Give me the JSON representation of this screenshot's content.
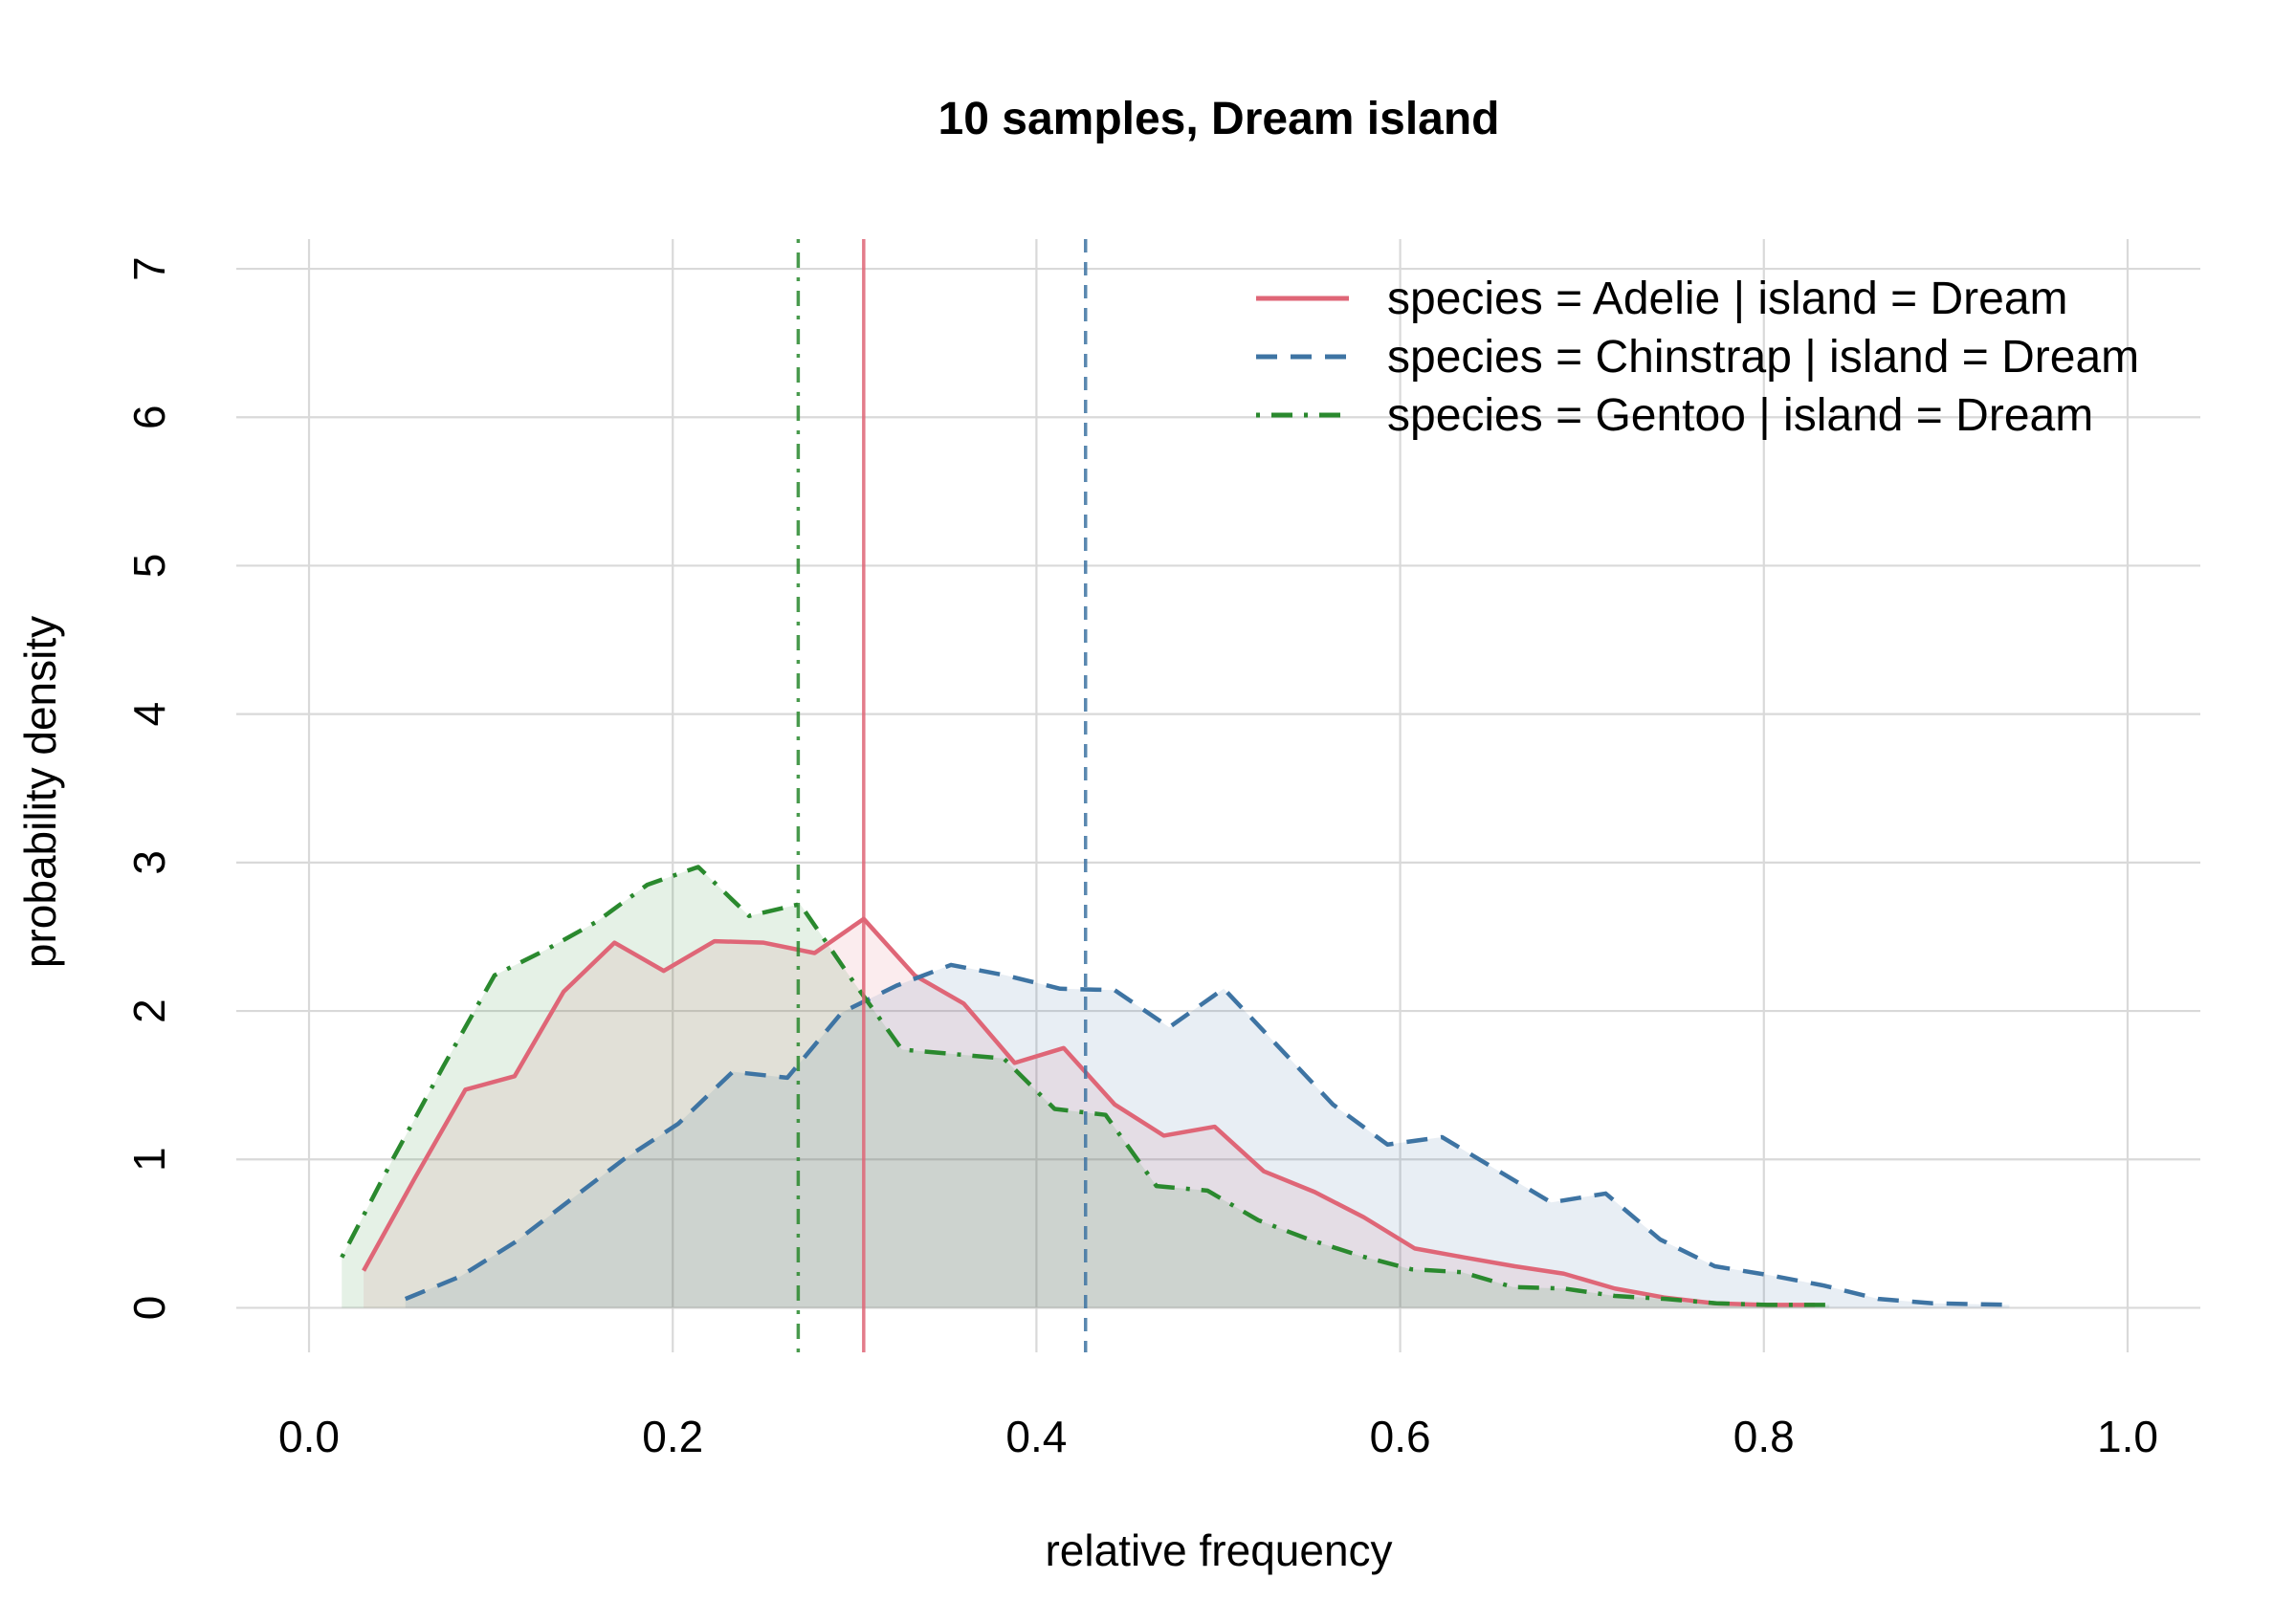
{
  "chart_data": {
    "type": "line",
    "title": "10 samples, Dream island",
    "xlabel": "relative frequency",
    "ylabel": "probability density",
    "xlim": [
      -0.04,
      1.04
    ],
    "ylim": [
      -0.3,
      7.2
    ],
    "x_ticks": [
      0.0,
      0.2,
      0.4,
      0.6,
      0.8,
      1.0
    ],
    "x_tick_labels": [
      "0.0",
      "0.2",
      "0.4",
      "0.6",
      "0.8",
      "1.0"
    ],
    "y_ticks": [
      0,
      1,
      2,
      3,
      4,
      5,
      6,
      7
    ],
    "y_tick_labels": [
      "0",
      "1",
      "2",
      "3",
      "4",
      "5",
      "6",
      "7"
    ],
    "grid": true,
    "legend_position": "top-right",
    "series": [
      {
        "name": "species = Adelie | island = Dream",
        "color": "#df6677",
        "fill": "rgba(223,102,119,0.12)",
        "dash": "solid",
        "mean": 0.305,
        "x": [
          0.03,
          0.058,
          0.086,
          0.113,
          0.14,
          0.168,
          0.195,
          0.223,
          0.25,
          0.278,
          0.305,
          0.333,
          0.36,
          0.388,
          0.415,
          0.443,
          0.47,
          0.498,
          0.525,
          0.553,
          0.58,
          0.608,
          0.635,
          0.663,
          0.69,
          0.718,
          0.745,
          0.773,
          0.8,
          0.828
        ],
        "y": [
          0.25,
          0.87,
          1.47,
          1.56,
          2.13,
          2.46,
          2.27,
          2.47,
          2.46,
          2.39,
          2.62,
          2.24,
          2.05,
          1.65,
          1.75,
          1.37,
          1.16,
          1.22,
          0.92,
          0.78,
          0.61,
          0.4,
          0.34,
          0.28,
          0.23,
          0.13,
          0.07,
          0.03,
          0.02,
          0.02
        ]
      },
      {
        "name": "species = Chinstrap | island = Dream",
        "color": "#3e74a3",
        "fill": "rgba(62,116,163,0.12)",
        "dash": "dashed",
        "mean": 0.427,
        "x": [
          0.053,
          0.083,
          0.113,
          0.143,
          0.173,
          0.203,
          0.233,
          0.263,
          0.293,
          0.323,
          0.353,
          0.383,
          0.413,
          0.443,
          0.473,
          0.503,
          0.533,
          0.563,
          0.593,
          0.623,
          0.653,
          0.683,
          0.713,
          0.743,
          0.773,
          0.803,
          0.833,
          0.863,
          0.893,
          0.935
        ],
        "y": [
          0.06,
          0.21,
          0.44,
          0.72,
          1.0,
          1.24,
          1.59,
          1.55,
          1.99,
          2.17,
          2.31,
          2.24,
          2.15,
          2.14,
          1.89,
          2.15,
          1.76,
          1.37,
          1.1,
          1.15,
          0.93,
          0.71,
          0.77,
          0.46,
          0.28,
          0.22,
          0.15,
          0.06,
          0.03,
          0.02
        ]
      },
      {
        "name": "species = Gentoo | island = Dream",
        "color": "#2a892e",
        "fill": "rgba(42,137,46,0.12)",
        "dash": "dotdash",
        "mean": 0.269,
        "x": [
          0.018,
          0.046,
          0.074,
          0.102,
          0.13,
          0.158,
          0.186,
          0.214,
          0.242,
          0.27,
          0.298,
          0.326,
          0.354,
          0.382,
          0.41,
          0.438,
          0.466,
          0.494,
          0.522,
          0.55,
          0.578,
          0.606,
          0.634,
          0.662,
          0.69,
          0.718,
          0.746,
          0.774,
          0.802,
          0.836
        ],
        "y": [
          0.34,
          1.0,
          1.63,
          2.24,
          2.41,
          2.6,
          2.85,
          2.97,
          2.64,
          2.72,
          2.22,
          1.74,
          1.71,
          1.68,
          1.34,
          1.3,
          0.82,
          0.79,
          0.59,
          0.46,
          0.35,
          0.26,
          0.24,
          0.14,
          0.13,
          0.08,
          0.06,
          0.03,
          0.02,
          0.02
        ]
      }
    ]
  }
}
